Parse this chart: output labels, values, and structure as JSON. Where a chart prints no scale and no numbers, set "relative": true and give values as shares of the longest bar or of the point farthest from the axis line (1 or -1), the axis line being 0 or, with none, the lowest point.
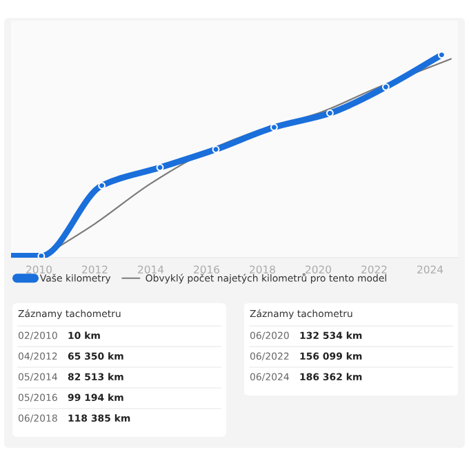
{
  "chart_data": [
    {
      "type": "line",
      "x": [
        "2009-01",
        "2010-02",
        "2012-04",
        "2014-05",
        "2016-05",
        "2018-06",
        "2020-06",
        "2022-06",
        "2024-06"
      ],
      "relative": true,
      "series": [
        {
          "name": "Vaše kilometry",
          "color": "#1a6fdb",
          "marker": "circle",
          "values": [
            0,
            0,
            0.35,
            0.44,
            0.53,
            0.64,
            0.71,
            0.84,
            1
          ]
        },
        {
          "name": "Obvyklý počet najetých kilometrů pro tento model",
          "color": "#7a7a7a",
          "x": [
            "2010-03",
            "2012-01",
            "2014-01",
            "2016-01",
            "2018-01",
            "2020-01",
            "2022-01",
            "2024-10"
          ],
          "values": [
            0,
            0.16,
            0.36,
            0.52,
            0.63,
            0.71,
            0.83,
            0.98
          ]
        }
      ],
      "xlim": [
        "2009-01",
        "2025-01"
      ],
      "xticks": [
        "2010",
        "2012",
        "2014",
        "2016",
        "2018",
        "2020",
        "2022",
        "2024"
      ],
      "tick_labels": "x",
      "legend": "bottom"
    },
    {
      "type": "other",
      "title": "Záznamy tachometru",
      "annotations": [
        "02/2010",
        "10 km",
        "04/2012",
        "65 350 km",
        "05/2014",
        "82 513 km",
        "05/2016",
        "99 194 km",
        "06/2018",
        "118 385 km"
      ]
    },
    {
      "type": "other",
      "title": "Záznamy tachometru",
      "annotations": [
        "06/2020",
        "132 534 km",
        "06/2022",
        "156 099 km",
        "06/2024",
        "186 362 km"
      ]
    }
  ]
}
